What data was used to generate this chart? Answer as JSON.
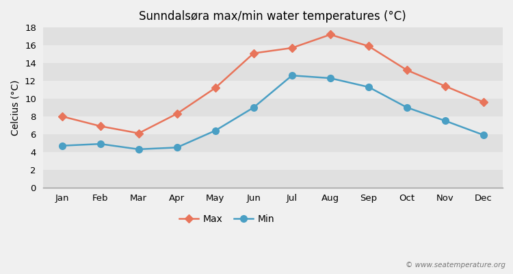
{
  "title": "Sunndalsøra max/min water temperatures (°C)",
  "ylabel": "Celcius (°C)",
  "months": [
    "Jan",
    "Feb",
    "Mar",
    "Apr",
    "May",
    "Jun",
    "Jul",
    "Aug",
    "Sep",
    "Oct",
    "Nov",
    "Dec"
  ],
  "max_values": [
    8.0,
    6.9,
    6.1,
    8.3,
    11.2,
    15.1,
    15.7,
    17.2,
    15.9,
    13.2,
    11.4,
    9.6
  ],
  "min_values": [
    4.7,
    4.9,
    4.3,
    4.5,
    6.4,
    9.0,
    12.6,
    12.3,
    11.3,
    9.0,
    7.5,
    5.9
  ],
  "max_color": "#e8745a",
  "min_color": "#4a9fc4",
  "bg_color": "#f0f0f0",
  "band_light": "#ebebeb",
  "band_dark": "#e0e0e0",
  "ylim": [
    0,
    18
  ],
  "yticks": [
    0,
    2,
    4,
    6,
    8,
    10,
    12,
    14,
    16,
    18
  ],
  "watermark": "© www.seatemperature.org",
  "legend_max": "Max",
  "legend_min": "Min",
  "max_marker": "D",
  "min_marker": "o",
  "max_marker_size": 6,
  "min_marker_size": 8,
  "line_width": 1.8
}
